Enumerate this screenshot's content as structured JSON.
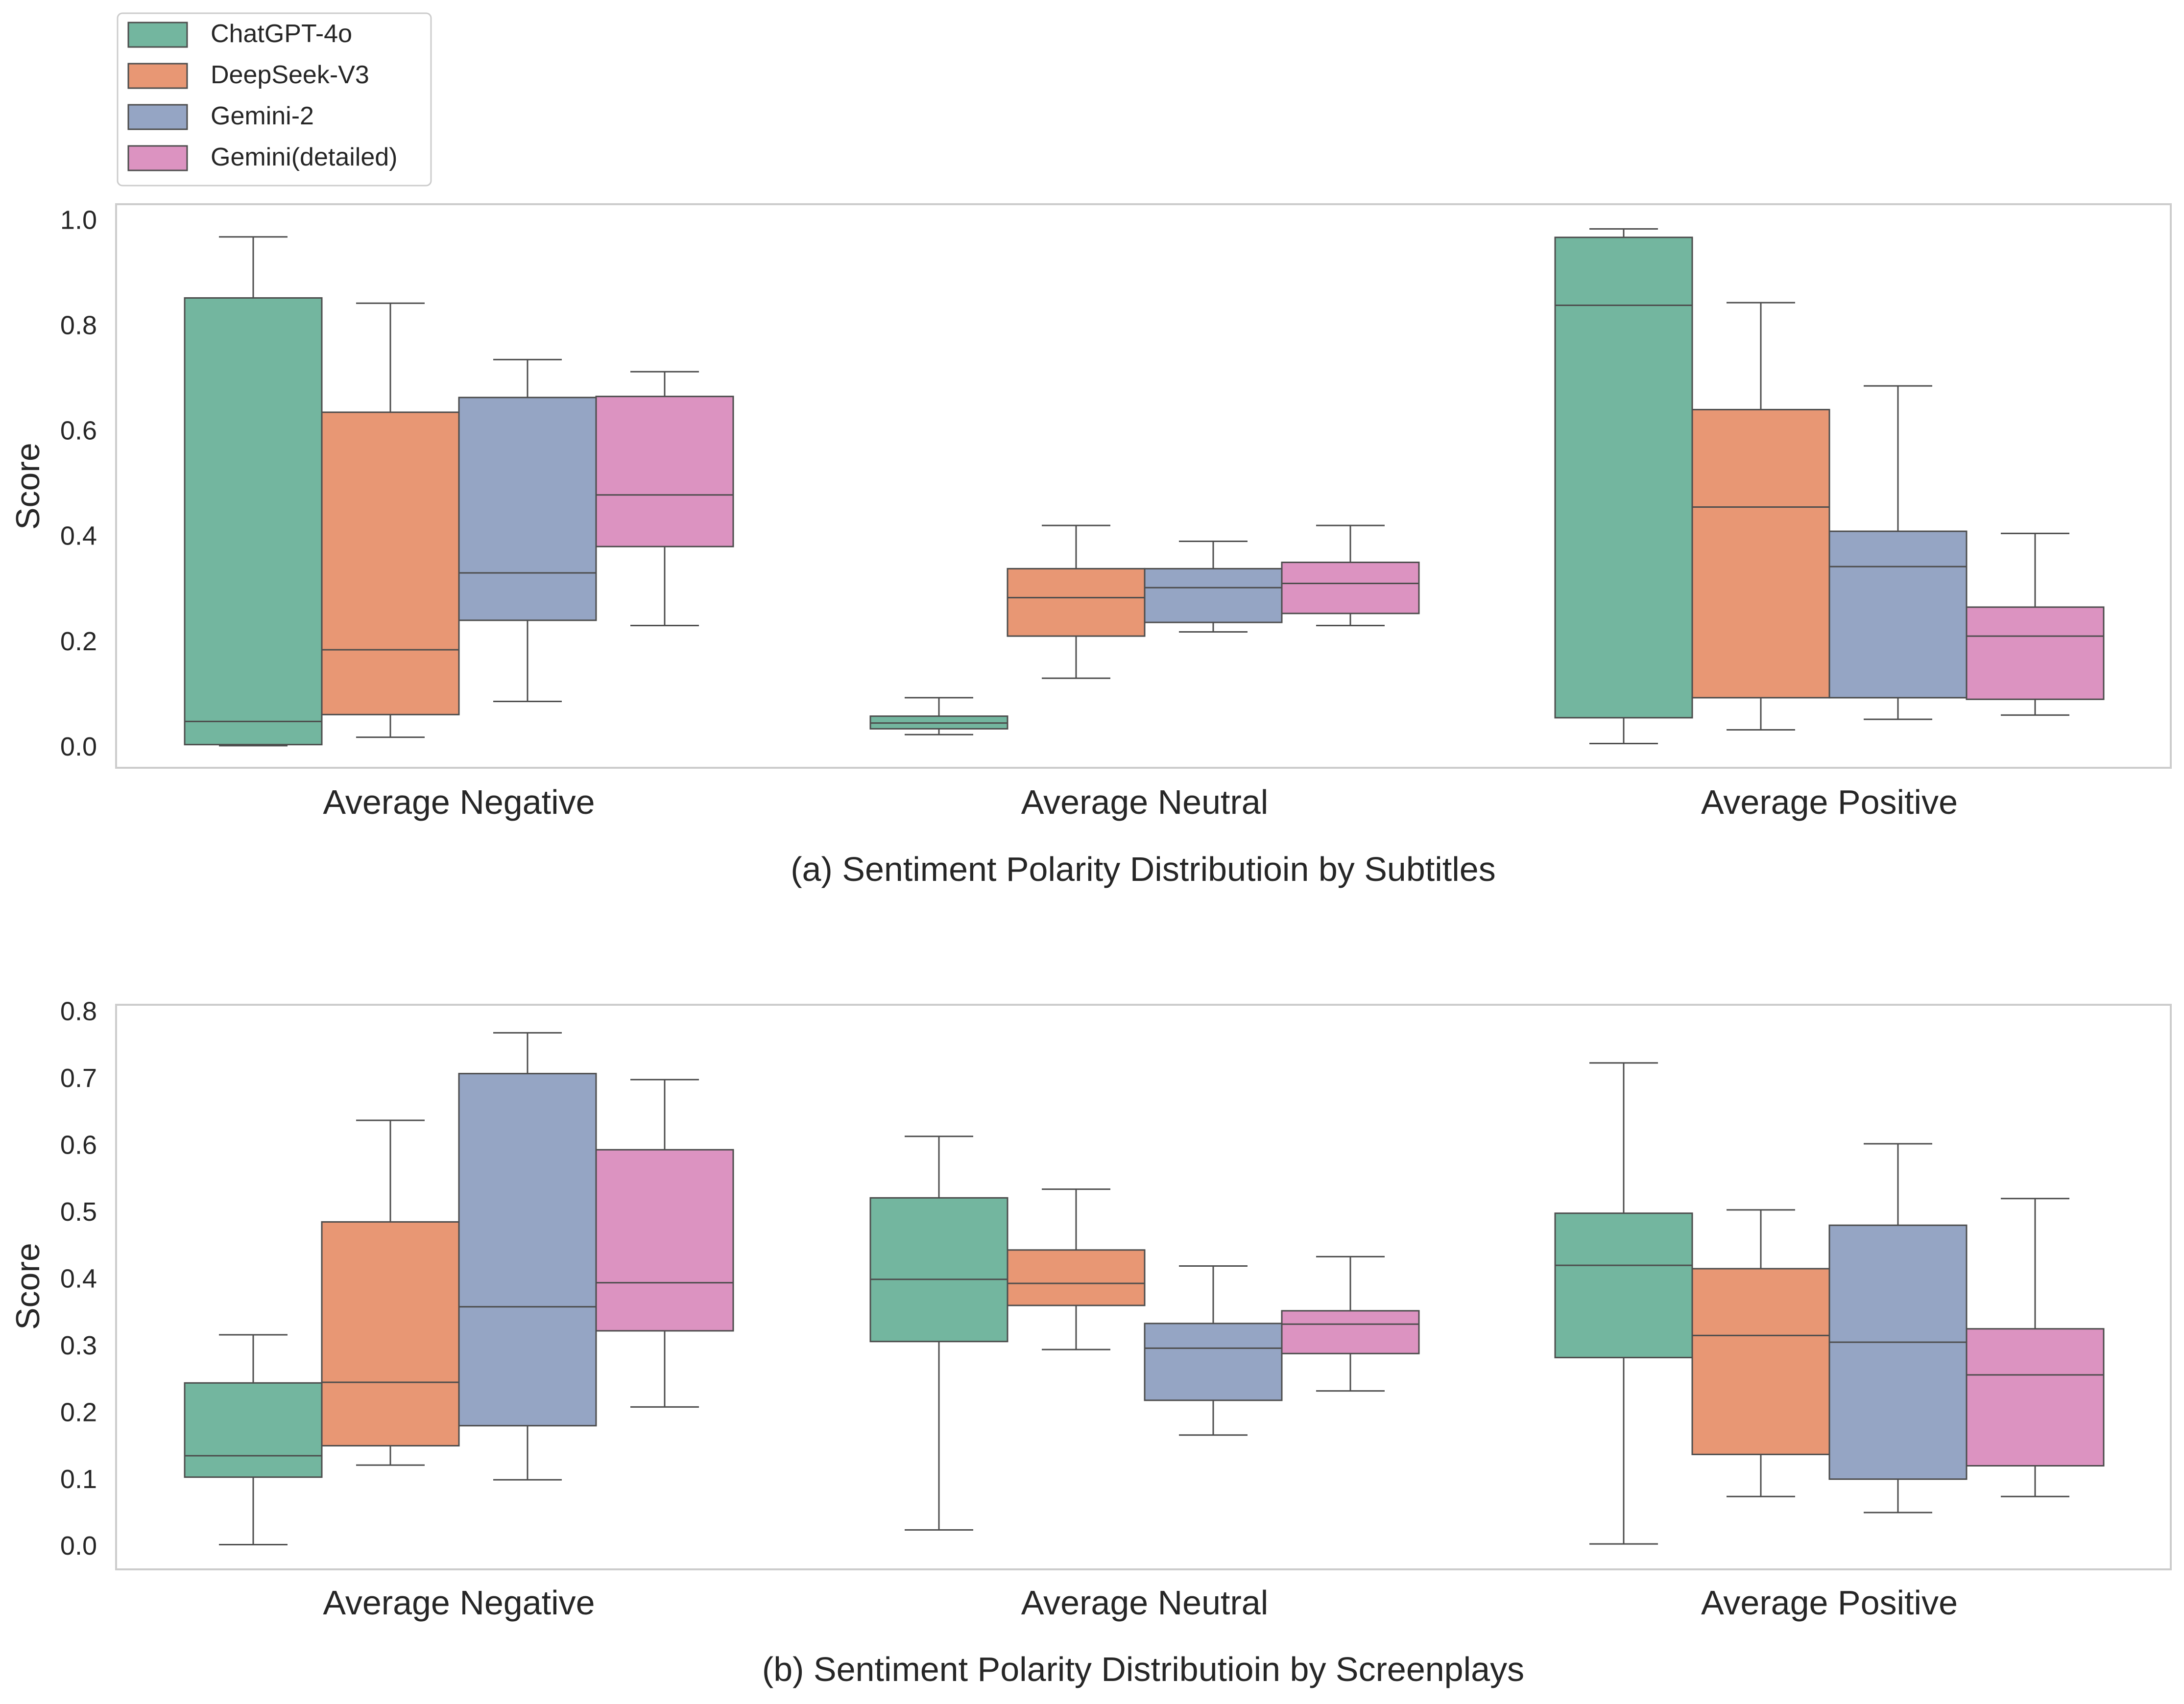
{
  "legend": {
    "placement": "top-left",
    "entries": [
      {
        "label": "ChatGPT-4o",
        "color": "#73b69f"
      },
      {
        "label": "DeepSeek-V3",
        "color": "#e89774"
      },
      {
        "label": "Gemini-2",
        "color": "#95a5c4"
      },
      {
        "label": "Gemini(detailed)",
        "color": "#dc93c1"
      }
    ]
  },
  "chart_data": [
    {
      "type": "box",
      "caption": "(a) Sentiment Polarity Distributioin by Subtitles",
      "ylabel": "Score",
      "xlabel": "",
      "ylim": [
        -0.04,
        1.03
      ],
      "yticks": [
        "0.0",
        "0.2",
        "0.4",
        "0.6",
        "0.8",
        "1.0"
      ],
      "categories": [
        "Average Negative",
        "Average Neutral",
        "Average Positive"
      ],
      "grid": false,
      "series": [
        {
          "name": "ChatGPT-4o",
          "boxes": [
            {
              "whislo": 0.002,
              "q1": 0.004,
              "med": 0.048,
              "q3": 0.852,
              "whishi": 0.968
            },
            {
              "whislo": 0.023,
              "q1": 0.034,
              "med": 0.045,
              "q3": 0.058,
              "whishi": 0.093
            },
            {
              "whislo": 0.006,
              "q1": 0.055,
              "med": 0.838,
              "q3": 0.967,
              "whishi": 0.983
            }
          ]
        },
        {
          "name": "DeepSeek-V3",
          "boxes": [
            {
              "whislo": 0.018,
              "q1": 0.061,
              "med": 0.184,
              "q3": 0.635,
              "whishi": 0.842
            },
            {
              "whislo": 0.13,
              "q1": 0.21,
              "med": 0.283,
              "q3": 0.338,
              "whishi": 0.42
            },
            {
              "whislo": 0.032,
              "q1": 0.093,
              "med": 0.455,
              "q3": 0.64,
              "whishi": 0.843
            }
          ]
        },
        {
          "name": "Gemini-2",
          "boxes": [
            {
              "whislo": 0.086,
              "q1": 0.24,
              "med": 0.33,
              "q3": 0.663,
              "whishi": 0.735
            },
            {
              "whislo": 0.218,
              "q1": 0.236,
              "med": 0.302,
              "q3": 0.338,
              "whishi": 0.39
            },
            {
              "whislo": 0.052,
              "q1": 0.093,
              "med": 0.342,
              "q3": 0.409,
              "whishi": 0.685
            }
          ]
        },
        {
          "name": "Gemini(detailed)",
          "boxes": [
            {
              "whislo": 0.23,
              "q1": 0.38,
              "med": 0.478,
              "q3": 0.665,
              "whishi": 0.712
            },
            {
              "whislo": 0.23,
              "q1": 0.253,
              "med": 0.31,
              "q3": 0.35,
              "whishi": 0.42
            },
            {
              "whislo": 0.06,
              "q1": 0.09,
              "med": 0.21,
              "q3": 0.265,
              "whishi": 0.405
            }
          ]
        }
      ]
    },
    {
      "type": "box",
      "caption": "(b) Sentiment Polarity Distributioin by Screenplays",
      "ylabel": "Score",
      "xlabel": "",
      "ylim": [
        -0.035,
        0.81
      ],
      "yticks": [
        "0.0",
        "0.1",
        "0.2",
        "0.3",
        "0.4",
        "0.5",
        "0.6",
        "0.7",
        "0.8"
      ],
      "categories": [
        "Average Negative",
        "Average Neutral",
        "Average Positive"
      ],
      "grid": false,
      "series": [
        {
          "name": "ChatGPT-4o",
          "boxes": [
            {
              "whislo": 0.002,
              "q1": 0.103,
              "med": 0.135,
              "q3": 0.244,
              "whishi": 0.316
            },
            {
              "whislo": 0.024,
              "q1": 0.306,
              "med": 0.399,
              "q3": 0.521,
              "whishi": 0.613
            },
            {
              "whislo": 0.003,
              "q1": 0.282,
              "med": 0.42,
              "q3": 0.498,
              "whishi": 0.723
            }
          ]
        },
        {
          "name": "DeepSeek-V3",
          "boxes": [
            {
              "whislo": 0.121,
              "q1": 0.15,
              "med": 0.245,
              "q3": 0.485,
              "whishi": 0.637
            },
            {
              "whislo": 0.294,
              "q1": 0.36,
              "med": 0.393,
              "q3": 0.443,
              "whishi": 0.534
            },
            {
              "whislo": 0.074,
              "q1": 0.137,
              "med": 0.315,
              "q3": 0.415,
              "whishi": 0.503
            }
          ]
        },
        {
          "name": "Gemini-2",
          "boxes": [
            {
              "whislo": 0.099,
              "q1": 0.18,
              "med": 0.358,
              "q3": 0.707,
              "whishi": 0.768
            },
            {
              "whislo": 0.166,
              "q1": 0.218,
              "med": 0.296,
              "q3": 0.333,
              "whishi": 0.419
            },
            {
              "whislo": 0.05,
              "q1": 0.1,
              "med": 0.305,
              "q3": 0.48,
              "whishi": 0.602
            }
          ]
        },
        {
          "name": "Gemini(detailed)",
          "boxes": [
            {
              "whislo": 0.208,
              "q1": 0.322,
              "med": 0.394,
              "q3": 0.593,
              "whishi": 0.698
            },
            {
              "whislo": 0.232,
              "q1": 0.288,
              "med": 0.332,
              "q3": 0.352,
              "whishi": 0.433
            },
            {
              "whislo": 0.074,
              "q1": 0.12,
              "med": 0.256,
              "q3": 0.325,
              "whishi": 0.52
            }
          ]
        }
      ]
    }
  ]
}
